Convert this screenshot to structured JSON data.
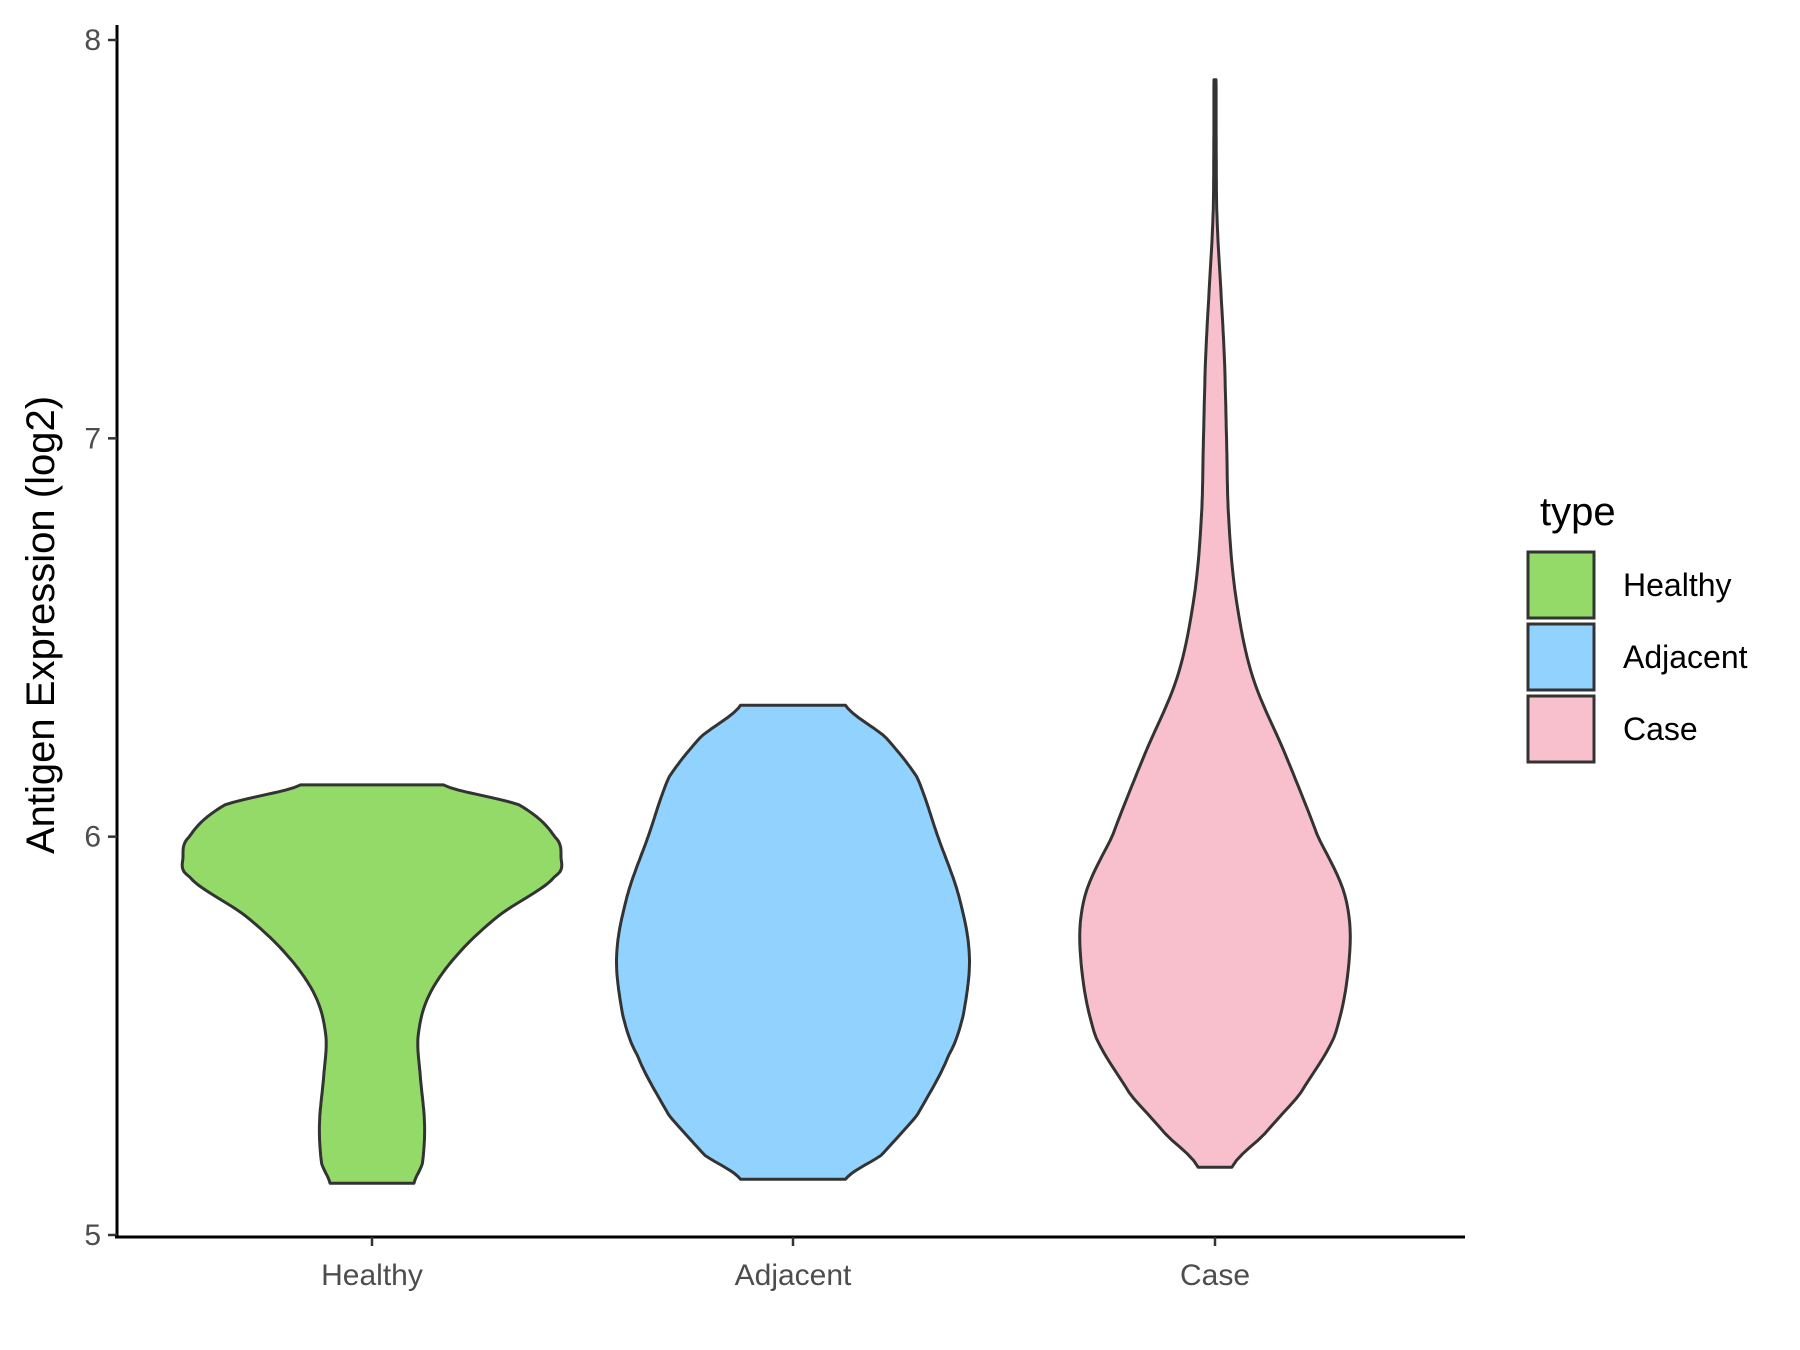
{
  "chart_data": {
    "type": "violin",
    "title": "",
    "xlabel": "",
    "ylabel": "Antigen Expression (log2)",
    "ylim": [
      5,
      8
    ],
    "yticks": [
      "5",
      "6",
      "7",
      "8"
    ],
    "categories": [
      "Healthy",
      "Adjacent",
      "Case"
    ],
    "grid": false,
    "legend": {
      "title": "type",
      "position": "right",
      "entries": [
        "Healthy",
        "Adjacent",
        "Case"
      ]
    },
    "colors": {
      "Healthy": "#93DA69",
      "Adjacent": "#92D2FF",
      "Case": "#F8C0CC",
      "outline": "#333333"
    },
    "series": [
      {
        "name": "Healthy",
        "min": 5.13,
        "max": 6.13,
        "profile": [
          [
            5.13,
            0.2
          ],
          [
            5.18,
            0.24
          ],
          [
            5.28,
            0.25
          ],
          [
            5.4,
            0.23
          ],
          [
            5.5,
            0.22
          ],
          [
            5.6,
            0.27
          ],
          [
            5.7,
            0.4
          ],
          [
            5.8,
            0.6
          ],
          [
            5.9,
            0.87
          ],
          [
            5.95,
            0.9
          ],
          [
            6.0,
            0.87
          ],
          [
            6.08,
            0.7
          ],
          [
            6.13,
            0.34
          ]
        ]
      },
      {
        "name": "Adjacent",
        "min": 5.14,
        "max": 6.33,
        "profile": [
          [
            5.14,
            0.25
          ],
          [
            5.2,
            0.42
          ],
          [
            5.3,
            0.59
          ],
          [
            5.45,
            0.74
          ],
          [
            5.55,
            0.81
          ],
          [
            5.7,
            0.84
          ],
          [
            5.85,
            0.79
          ],
          [
            6.0,
            0.69
          ],
          [
            6.15,
            0.59
          ],
          [
            6.25,
            0.44
          ],
          [
            6.33,
            0.25
          ]
        ]
      },
      {
        "name": "Case",
        "min": 5.17,
        "max": 7.9,
        "profile": [
          [
            5.17,
            0.08
          ],
          [
            5.25,
            0.23
          ],
          [
            5.35,
            0.4
          ],
          [
            5.5,
            0.57
          ],
          [
            5.7,
            0.64
          ],
          [
            5.85,
            0.62
          ],
          [
            6.0,
            0.49
          ],
          [
            6.2,
            0.34
          ],
          [
            6.4,
            0.18
          ],
          [
            6.6,
            0.1
          ],
          [
            6.8,
            0.065
          ],
          [
            7.0,
            0.055
          ],
          [
            7.2,
            0.045
          ],
          [
            7.35,
            0.03
          ],
          [
            7.55,
            0.01
          ],
          [
            7.7,
            0.006
          ],
          [
            7.9,
            0.005
          ]
        ]
      }
    ]
  }
}
